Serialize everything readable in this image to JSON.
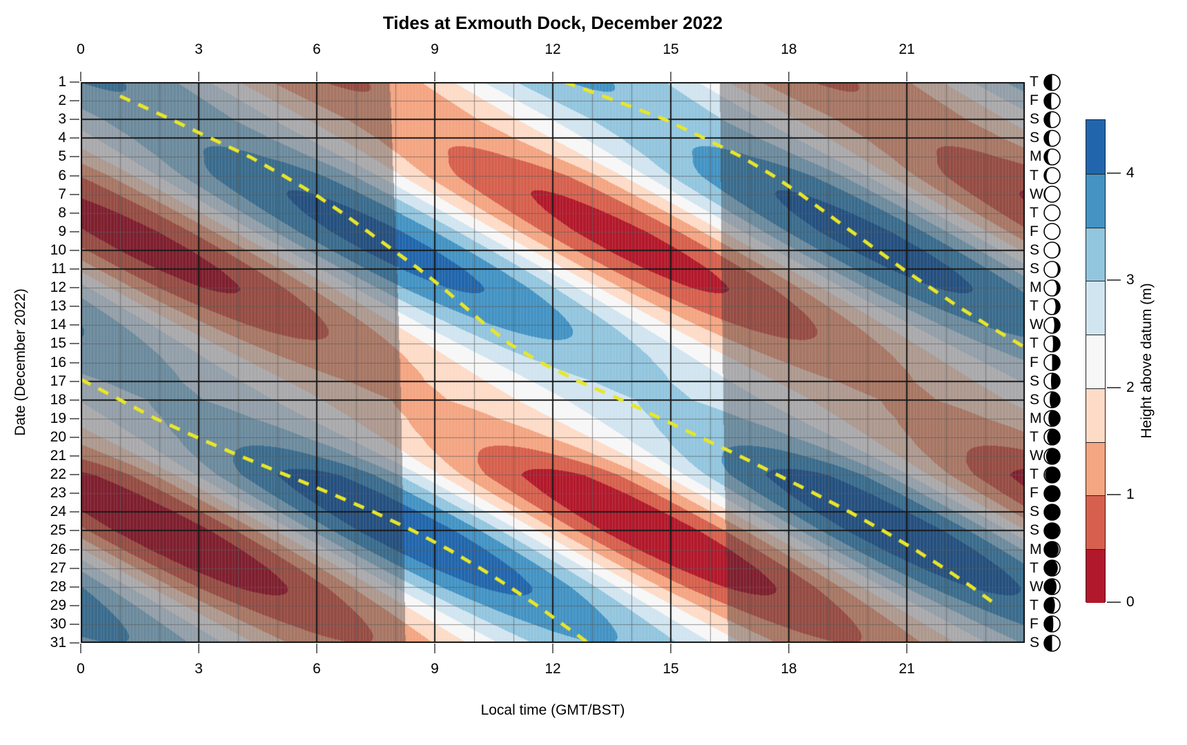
{
  "title": "Tides at Exmouth Dock, December 2022",
  "x_axis": {
    "label": "Local time (GMT/BST)",
    "tick_hours": [
      0,
      3,
      6,
      9,
      12,
      15,
      18,
      21
    ],
    "range_hours": [
      0,
      24
    ]
  },
  "y_axis": {
    "label": "Date (December 2022)",
    "range_days": [
      1,
      31
    ]
  },
  "colorbar": {
    "label": "Height above datum (m)",
    "tick_values": [
      0,
      1,
      2,
      3,
      4
    ],
    "range": [
      0,
      4.5
    ]
  },
  "style": {
    "palette_low_to_high": [
      "#b2182b",
      "#d6604d",
      "#f4a582",
      "#fddbc7",
      "#f7f7f7",
      "#d1e5f0",
      "#92c5de",
      "#4393c3",
      "#2166ac"
    ],
    "level_step_m": 0.5,
    "night_overlay": {
      "r": 16,
      "g": 16,
      "b": 19,
      "keep": 0.62
    },
    "grid_minor": "rgba(90,90,90,0.65)",
    "grid_major": "#1a1a1a",
    "dash_color": "#e8e62a",
    "tick_color": "#6e6e6e",
    "border_color": "#111111"
  },
  "chart_data": {
    "type": "heatmap",
    "title": "Tides at Exmouth Dock, December 2022",
    "xlabel": "Local time (GMT/BST)",
    "ylabel": "Date (December 2022)",
    "zlabel": "Height above datum (m)",
    "x_hours_range": [
      0,
      24
    ],
    "levels_m": [
      0,
      0.5,
      1,
      1.5,
      2,
      2.5,
      3,
      3.5,
      4,
      4.5
    ],
    "palette_low_to_high": [
      "#b2182b",
      "#d6604d",
      "#f4a582",
      "#fddbc7",
      "#f7f7f7",
      "#d1e5f0",
      "#92c5de",
      "#4393c3",
      "#2166ac"
    ],
    "tide_model": {
      "mean_m": 2.25,
      "period_h": 12.42,
      "first_high_water_h": 0.55,
      "hw_drift_h_per_day": 0.84
    },
    "days": [
      {
        "date": 1,
        "weekday": "T",
        "weekend": false,
        "amplitude_m": 1.3,
        "high_waters_h": [
          0.55,
          12.97
        ],
        "sunrise_h": 7.85,
        "sunset_h": 16.24,
        "moon_dark_fraction": 0.5,
        "moon_dark_side": "left"
      },
      {
        "date": 2,
        "weekday": "F",
        "weekend": false,
        "amplitude_m": 1.2,
        "high_waters_h": [
          1.39,
          13.81
        ],
        "sunrise_h": 7.87,
        "sunset_h": 16.24,
        "moon_dark_fraction": 0.44,
        "moon_dark_side": "left"
      },
      {
        "date": 3,
        "weekday": "S",
        "weekend": true,
        "amplitude_m": 1.12,
        "high_waters_h": [
          2.23,
          14.65
        ],
        "sunrise_h": 7.89,
        "sunset_h": 16.25,
        "moon_dark_fraction": 0.37,
        "moon_dark_side": "left"
      },
      {
        "date": 4,
        "weekday": "S",
        "weekend": true,
        "amplitude_m": 1.18,
        "high_waters_h": [
          3.07,
          15.49
        ],
        "sunrise_h": 7.91,
        "sunset_h": 16.25,
        "moon_dark_fraction": 0.3,
        "moon_dark_side": "left"
      },
      {
        "date": 5,
        "weekday": "M",
        "weekend": false,
        "amplitude_m": 1.35,
        "high_waters_h": [
          3.91,
          16.33
        ],
        "sunrise_h": 7.92,
        "sunset_h": 16.26,
        "moon_dark_fraction": 0.23,
        "moon_dark_side": "left"
      },
      {
        "date": 6,
        "weekday": "T",
        "weekend": false,
        "amplitude_m": 1.65,
        "high_waters_h": [
          4.75,
          17.17
        ],
        "sunrise_h": 7.94,
        "sunset_h": 16.26,
        "moon_dark_fraction": 0.15,
        "moon_dark_side": "left"
      },
      {
        "date": 7,
        "weekday": "W",
        "weekend": false,
        "amplitude_m": 1.78,
        "high_waters_h": [
          5.59,
          18.01
        ],
        "sunrise_h": 7.96,
        "sunset_h": 16.27,
        "moon_dark_fraction": 0.07,
        "moon_dark_side": "left"
      },
      {
        "date": 8,
        "weekday": "T",
        "weekend": false,
        "amplitude_m": 1.88,
        "high_waters_h": [
          6.43,
          18.85
        ],
        "sunrise_h": 7.98,
        "sunset_h": 16.27,
        "moon_dark_fraction": 0.01,
        "moon_dark_side": "left"
      },
      {
        "date": 9,
        "weekday": "F",
        "weekend": false,
        "amplitude_m": 1.95,
        "high_waters_h": [
          7.27,
          19.69
        ],
        "sunrise_h": 8.0,
        "sunset_h": 16.27,
        "moon_dark_fraction": 0.03,
        "moon_dark_side": "right"
      },
      {
        "date": 10,
        "weekday": "S",
        "weekend": true,
        "amplitude_m": 1.95,
        "high_waters_h": [
          8.11,
          20.53
        ],
        "sunrise_h": 8.02,
        "sunset_h": 16.28,
        "moon_dark_fraction": 0.08,
        "moon_dark_side": "right"
      },
      {
        "date": 11,
        "weekday": "S",
        "weekend": true,
        "amplitude_m": 1.9,
        "high_waters_h": [
          8.95,
          21.37
        ],
        "sunrise_h": 8.03,
        "sunset_h": 16.28,
        "moon_dark_fraction": 0.14,
        "moon_dark_side": "right"
      },
      {
        "date": 12,
        "weekday": "M",
        "weekend": false,
        "amplitude_m": 1.8,
        "high_waters_h": [
          9.79,
          22.21
        ],
        "sunrise_h": 8.05,
        "sunset_h": 16.29,
        "moon_dark_fraction": 0.21,
        "moon_dark_side": "right"
      },
      {
        "date": 13,
        "weekday": "T",
        "weekend": false,
        "amplitude_m": 1.62,
        "high_waters_h": [
          10.63,
          23.05
        ],
        "sunrise_h": 8.06,
        "sunset_h": 16.29,
        "moon_dark_fraction": 0.28,
        "moon_dark_side": "right"
      },
      {
        "date": 14,
        "weekday": "W",
        "weekend": false,
        "amplitude_m": 1.42,
        "high_waters_h": [
          11.47,
          23.89
        ],
        "sunrise_h": 8.08,
        "sunset_h": 16.3,
        "moon_dark_fraction": 0.36,
        "moon_dark_side": "right"
      },
      {
        "date": 15,
        "weekday": "T",
        "weekend": false,
        "amplitude_m": 1.2,
        "high_waters_h": [
          12.31
        ],
        "sunrise_h": 8.09,
        "sunset_h": 16.3,
        "moon_dark_fraction": 0.44,
        "moon_dark_side": "right"
      },
      {
        "date": 16,
        "weekday": "F",
        "weekend": false,
        "amplitude_m": 1.0,
        "high_waters_h": [
          0.73,
          13.15
        ],
        "sunrise_h": 8.11,
        "sunset_h": 16.31,
        "moon_dark_fraction": 0.5,
        "moon_dark_side": "right"
      },
      {
        "date": 17,
        "weekday": "S",
        "weekend": true,
        "amplitude_m": 0.85,
        "high_waters_h": [
          1.57,
          13.99
        ],
        "sunrise_h": 8.12,
        "sunset_h": 16.32,
        "moon_dark_fraction": 0.57,
        "moon_dark_side": "right"
      },
      {
        "date": 18,
        "weekday": "S",
        "weekend": true,
        "amplitude_m": 0.8,
        "high_waters_h": [
          2.41,
          14.83
        ],
        "sunrise_h": 8.13,
        "sunset_h": 16.32,
        "moon_dark_fraction": 0.65,
        "moon_dark_side": "right"
      },
      {
        "date": 19,
        "weekday": "M",
        "weekend": false,
        "amplitude_m": 0.9,
        "high_waters_h": [
          3.25,
          15.67
        ],
        "sunrise_h": 8.14,
        "sunset_h": 16.33,
        "moon_dark_fraction": 0.73,
        "moon_dark_side": "right"
      },
      {
        "date": 20,
        "weekday": "T",
        "weekend": false,
        "amplitude_m": 1.1,
        "high_waters_h": [
          4.09,
          16.51
        ],
        "sunrise_h": 8.15,
        "sunset_h": 16.34,
        "moon_dark_fraction": 0.81,
        "moon_dark_side": "right"
      },
      {
        "date": 21,
        "weekday": "W",
        "weekend": false,
        "amplitude_m": 1.45,
        "high_waters_h": [
          4.93,
          17.35
        ],
        "sunrise_h": 8.16,
        "sunset_h": 16.35,
        "moon_dark_fraction": 0.88,
        "moon_dark_side": "right"
      },
      {
        "date": 22,
        "weekday": "T",
        "weekend": false,
        "amplitude_m": 1.9,
        "high_waters_h": [
          5.77,
          18.19
        ],
        "sunrise_h": 8.17,
        "sunset_h": 16.36,
        "moon_dark_fraction": 0.94,
        "moon_dark_side": "right"
      },
      {
        "date": 23,
        "weekday": "F",
        "weekend": false,
        "amplitude_m": 2.02,
        "high_waters_h": [
          6.61,
          19.03
        ],
        "sunrise_h": 8.18,
        "sunset_h": 16.37,
        "moon_dark_fraction": 0.99,
        "moon_dark_side": "right"
      },
      {
        "date": 24,
        "weekday": "S",
        "weekend": true,
        "amplitude_m": 2.1,
        "high_waters_h": [
          7.45,
          19.87
        ],
        "sunrise_h": 8.19,
        "sunset_h": 16.38,
        "moon_dark_fraction": 1.0,
        "moon_dark_side": "right"
      },
      {
        "date": 25,
        "weekday": "S",
        "weekend": true,
        "amplitude_m": 2.15,
        "high_waters_h": [
          8.29,
          20.71
        ],
        "sunrise_h": 8.2,
        "sunset_h": 16.39,
        "moon_dark_fraction": 0.96,
        "moon_dark_side": "left"
      },
      {
        "date": 26,
        "weekday": "M",
        "weekend": false,
        "amplitude_m": 2.1,
        "high_waters_h": [
          9.13,
          21.55
        ],
        "sunrise_h": 8.21,
        "sunset_h": 16.4,
        "moon_dark_fraction": 0.92,
        "moon_dark_side": "left"
      },
      {
        "date": 27,
        "weekday": "T",
        "weekend": false,
        "amplitude_m": 2.0,
        "high_waters_h": [
          9.97,
          22.39
        ],
        "sunrise_h": 8.22,
        "sunset_h": 16.41,
        "moon_dark_fraction": 0.86,
        "moon_dark_side": "left"
      },
      {
        "date": 28,
        "weekday": "W",
        "weekend": false,
        "amplitude_m": 1.85,
        "high_waters_h": [
          10.81,
          23.23
        ],
        "sunrise_h": 8.22,
        "sunset_h": 16.42,
        "moon_dark_fraction": 0.78,
        "moon_dark_side": "left"
      },
      {
        "date": 29,
        "weekday": "T",
        "weekend": false,
        "amplitude_m": 1.62,
        "high_waters_h": [
          11.65
        ],
        "sunrise_h": 8.23,
        "sunset_h": 16.43,
        "moon_dark_fraction": 0.68,
        "moon_dark_side": "left"
      },
      {
        "date": 30,
        "weekday": "F",
        "weekend": false,
        "amplitude_m": 1.42,
        "high_waters_h": [
          0.07,
          12.49
        ],
        "sunrise_h": 8.24,
        "sunset_h": 16.44,
        "moon_dark_fraction": 0.58,
        "moon_dark_side": "left"
      },
      {
        "date": 31,
        "weekday": "S",
        "weekend": true,
        "amplitude_m": 1.25,
        "high_waters_h": [
          0.91,
          13.33
        ],
        "sunrise_h": 8.25,
        "sunset_h": 16.45,
        "moon_dark_fraction": 0.5,
        "moon_dark_side": "left"
      }
    ],
    "dashed_tracks": [
      {
        "name": "track-1",
        "points_day_hour": [
          [
            1,
            12.3
          ],
          [
            2,
            13.6
          ],
          [
            3,
            14.85
          ],
          [
            4,
            15.85
          ],
          [
            5,
            16.8
          ],
          [
            6,
            17.6
          ],
          [
            7,
            18.3
          ],
          [
            8,
            18.95
          ],
          [
            9,
            19.6
          ],
          [
            10,
            20.25
          ],
          [
            11,
            20.9
          ],
          [
            12,
            21.6
          ],
          [
            13,
            22.3
          ],
          [
            14,
            23.05
          ],
          [
            15,
            23.85
          ],
          [
            15.2,
            24
          ]
        ]
      },
      {
        "name": "track-1-wrapped",
        "points_day_hour": [
          [
            16.9,
            0
          ],
          [
            18,
            1.0
          ],
          [
            19,
            1.9
          ],
          [
            20,
            2.95
          ],
          [
            21,
            4.05
          ],
          [
            22,
            5.2
          ],
          [
            23,
            6.35
          ],
          [
            24,
            7.45
          ],
          [
            25,
            8.45
          ],
          [
            26,
            9.35
          ],
          [
            27,
            10.15
          ],
          [
            28,
            10.9
          ],
          [
            29,
            11.6
          ],
          [
            30,
            12.25
          ],
          [
            31,
            12.9
          ]
        ]
      },
      {
        "name": "track-2",
        "points_day_hour": [
          [
            1.75,
            1.0
          ],
          [
            3,
            2.3
          ],
          [
            4,
            3.3
          ],
          [
            5,
            4.3
          ],
          [
            6,
            5.15
          ],
          [
            7,
            5.95
          ],
          [
            8,
            6.65
          ],
          [
            9,
            7.3
          ],
          [
            10,
            7.95
          ],
          [
            11,
            8.6
          ],
          [
            12,
            9.2
          ],
          [
            13,
            9.75
          ],
          [
            14,
            10.3
          ],
          [
            15,
            10.9
          ],
          [
            16,
            11.7
          ],
          [
            17,
            12.65
          ],
          [
            18,
            13.75
          ],
          [
            19,
            14.75
          ],
          [
            20,
            15.75
          ],
          [
            21,
            16.75
          ],
          [
            22,
            17.7
          ],
          [
            23,
            18.65
          ],
          [
            24,
            19.55
          ],
          [
            25,
            20.4
          ],
          [
            26,
            21.2
          ],
          [
            27,
            21.95
          ],
          [
            28,
            22.65
          ],
          [
            29,
            23.3
          ]
        ]
      }
    ]
  }
}
